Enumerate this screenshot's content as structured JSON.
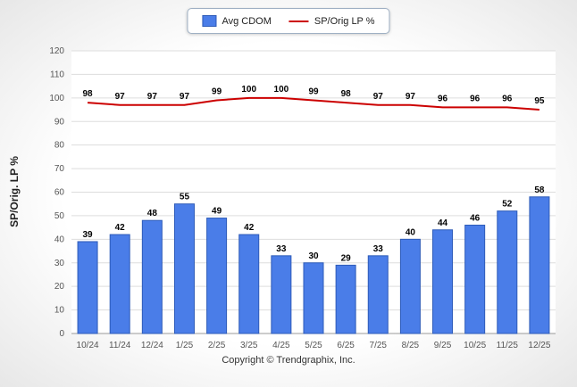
{
  "chart_data": {
    "type": "bar",
    "categories": [
      "10/24",
      "11/24",
      "12/24",
      "1/25",
      "2/25",
      "3/25",
      "4/25",
      "5/25",
      "6/25",
      "7/25",
      "8/25",
      "9/25",
      "10/25",
      "11/25",
      "12/25"
    ],
    "series": [
      {
        "name": "Avg CDOM",
        "type": "bar",
        "color": "#4a7de8",
        "border_color": "#2d5bb8",
        "values": [
          39,
          42,
          48,
          55,
          49,
          42,
          33,
          30,
          29,
          33,
          40,
          44,
          46,
          52,
          58
        ]
      },
      {
        "name": "SP/Orig LP %",
        "type": "line",
        "color": "#cc0000",
        "values": [
          98,
          97,
          97,
          97,
          99,
          100,
          100,
          99,
          98,
          97,
          97,
          96,
          96,
          96,
          95
        ]
      }
    ],
    "title": "",
    "xlabel": "",
    "ylabel": "SP/Orig. LP %",
    "ylim": [
      0,
      120
    ],
    "ytick_step": 10,
    "grid": true,
    "legend_position": "top"
  },
  "footer": {
    "text": "Copyright © Trendgraphix, Inc."
  }
}
